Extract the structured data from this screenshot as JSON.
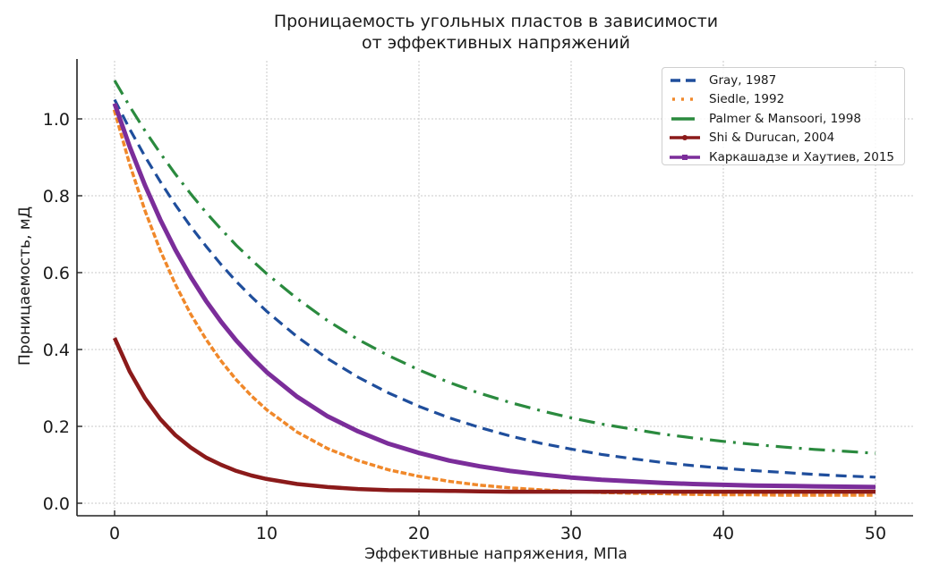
{
  "chart": {
    "title_line1": "Проницаемость угольных пластов в зависимости",
    "title_line2": "от эффективных напряжений",
    "xlabel": "Эффективные напряжения, МПа",
    "ylabel": "Проницаемость, мД"
  },
  "legend": [
    {
      "label": "Gray, 1987",
      "color": "#1f4e9c",
      "style": "dashed"
    },
    {
      "label": "Siedle, 1992",
      "color": "#f0882a",
      "style": "dotted"
    },
    {
      "label": "Palmer & Mansoori, 1998",
      "color": "#2a8a3e",
      "style": "dashdot"
    },
    {
      "label": "Shi & Durucan, 2004",
      "color": "#8b1a1a",
      "style": "solid-marker"
    },
    {
      "label": "Каркашадзе и Хаутиев, 2015",
      "color": "#7b2d9a",
      "style": "solid-marker"
    }
  ],
  "chart_data": {
    "type": "line",
    "title": "Проницаемость угольных пластов в зависимости от эффективных напряжений",
    "xlabel": "Эффективные напряжения, МПа",
    "ylabel": "Проницаемость, мД",
    "xlim": [
      -2.5,
      52.5
    ],
    "ylim": [
      -0.035,
      1.16
    ],
    "xticks": [
      0,
      10,
      20,
      30,
      40,
      50
    ],
    "yticks": [
      0.0,
      0.2,
      0.4,
      0.6,
      0.8,
      1.0
    ],
    "ytick_labels": [
      "0.0",
      "0.2",
      "0.4",
      "0.6",
      "0.8",
      "1.0"
    ],
    "grid": true,
    "legend_position": "upper right",
    "x": [
      0,
      1,
      2,
      3,
      4,
      5,
      6,
      7,
      8,
      9,
      10,
      12,
      14,
      16,
      18,
      20,
      22,
      24,
      26,
      28,
      30,
      32,
      34,
      36,
      38,
      40,
      42,
      44,
      46,
      48,
      50
    ],
    "series": [
      {
        "name": "Gray, 1987",
        "color": "#1f4e9c",
        "dash": "12,7",
        "width": 3.2,
        "values": [
          1.05,
          0.973,
          0.902,
          0.837,
          0.776,
          0.72,
          0.669,
          0.621,
          0.577,
          0.537,
          0.499,
          0.433,
          0.376,
          0.328,
          0.287,
          0.252,
          0.222,
          0.197,
          0.175,
          0.156,
          0.141,
          0.127,
          0.116,
          0.106,
          0.098,
          0.091,
          0.085,
          0.08,
          0.075,
          0.071,
          0.068
        ]
      },
      {
        "name": "Siedle, 1992",
        "color": "#f0882a",
        "dash": "3,6",
        "width": 3.5,
        "values": [
          1.02,
          0.881,
          0.761,
          0.658,
          0.569,
          0.492,
          0.427,
          0.37,
          0.321,
          0.279,
          0.243,
          0.185,
          0.142,
          0.111,
          0.087,
          0.07,
          0.057,
          0.047,
          0.04,
          0.035,
          0.031,
          0.028,
          0.026,
          0.025,
          0.023,
          0.022,
          0.022,
          0.021,
          0.021,
          0.021,
          0.021
        ]
      },
      {
        "name": "Palmer & Mansoori, 1998",
        "color": "#2a8a3e",
        "dash": "18,8,3,8",
        "width": 3.2,
        "values": [
          1.1,
          1.032,
          0.969,
          0.911,
          0.856,
          0.805,
          0.757,
          0.713,
          0.671,
          0.633,
          0.597,
          0.532,
          0.475,
          0.426,
          0.384,
          0.347,
          0.314,
          0.286,
          0.262,
          0.241,
          0.222,
          0.206,
          0.193,
          0.18,
          0.17,
          0.161,
          0.153,
          0.146,
          0.14,
          0.135,
          0.13
        ]
      },
      {
        "name": "Shi & Durucan, 2004",
        "color": "#8b1a1a",
        "dash": "",
        "width": 4.5,
        "values": [
          0.43,
          0.342,
          0.273,
          0.219,
          0.177,
          0.145,
          0.119,
          0.1,
          0.084,
          0.072,
          0.063,
          0.05,
          0.042,
          0.037,
          0.034,
          0.033,
          0.032,
          0.031,
          0.03,
          0.03,
          0.03,
          0.03,
          0.03,
          0.03,
          0.03,
          0.03,
          0.03,
          0.03,
          0.03,
          0.03,
          0.03
        ]
      },
      {
        "name": "Каркашадзе и Хаутиев, 2015",
        "color": "#7b2d9a",
        "dash": "",
        "width": 5,
        "values": [
          1.04,
          0.927,
          0.827,
          0.738,
          0.659,
          0.589,
          0.527,
          0.472,
          0.423,
          0.38,
          0.341,
          0.277,
          0.226,
          0.187,
          0.155,
          0.131,
          0.111,
          0.096,
          0.084,
          0.075,
          0.067,
          0.061,
          0.057,
          0.053,
          0.05,
          0.048,
          0.046,
          0.045,
          0.044,
          0.043,
          0.042
        ]
      }
    ]
  }
}
